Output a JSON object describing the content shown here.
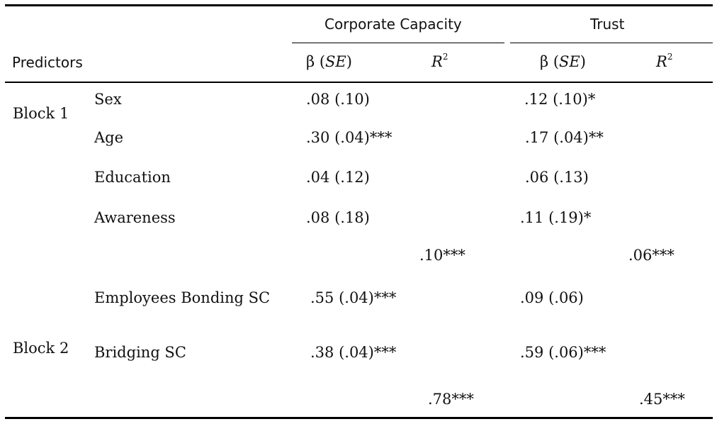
{
  "table": {
    "group_headers": {
      "corporate_capacity": "Corporate Capacity",
      "trust": "Trust"
    },
    "col_headers": {
      "predictors": "Predictors",
      "beta": "β",
      "se": "SE",
      "r": "R",
      "r_sup": "2"
    },
    "blocks": [
      {
        "label": "Block 1",
        "rows": [
          {
            "predictor": "Sex",
            "cc_beta": ".08 (.10)",
            "trust_beta": ".12 (.10)*"
          },
          {
            "predictor": "Age",
            "cc_beta": ".30 (.04)***",
            "trust_beta": ".17 (.04)**"
          },
          {
            "predictor": "Education",
            "cc_beta": ".04 (.12)",
            "trust_beta": ".06 (.13)"
          },
          {
            "predictor": "Awareness",
            "cc_beta": ".08 (.18)",
            "trust_beta": ".11 (.19)*"
          }
        ],
        "cc_r2": ".10***",
        "trust_r2": ".06***"
      },
      {
        "label": "Block 2",
        "rows": [
          {
            "predictor": "Employees Bonding SC",
            "cc_beta": ".55 (.04)***",
            "trust_beta": ".09 (.06)"
          },
          {
            "predictor": "Bridging SC",
            "cc_beta": ".38 (.04)***",
            "trust_beta": ".59 (.06)***"
          }
        ],
        "cc_r2": ".78***",
        "trust_r2": ".45***"
      }
    ]
  }
}
